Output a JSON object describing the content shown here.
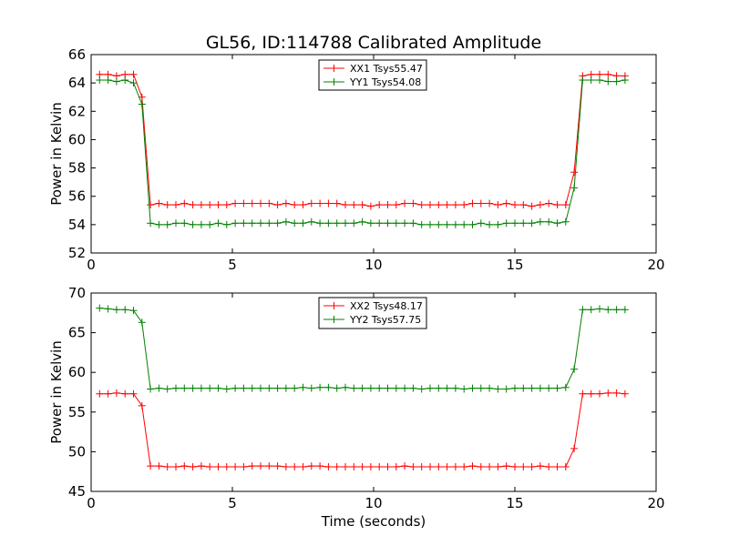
{
  "figure": {
    "title": "GL56, ID:114788 Calibrated Amplitude"
  },
  "chart_data": [
    {
      "type": "line",
      "title": "GL56, ID:114788 Calibrated Amplitude",
      "xlabel": "",
      "ylabel": "Power in Kelvin",
      "xlim": [
        0,
        20
      ],
      "ylim": [
        52,
        66
      ],
      "xticks": [
        0,
        5,
        10,
        15,
        20
      ],
      "yticks": [
        52,
        54,
        56,
        58,
        60,
        62,
        64,
        66
      ],
      "grid": false,
      "legend_position": "top-center",
      "x": [
        0.3,
        0.6,
        0.9,
        1.2,
        1.5,
        1.8,
        2.1,
        2.4,
        2.7,
        3.0,
        3.3,
        3.6,
        3.9,
        4.2,
        4.5,
        4.8,
        5.1,
        5.4,
        5.7,
        6.0,
        6.3,
        6.6,
        6.9,
        7.2,
        7.5,
        7.8,
        8.1,
        8.4,
        8.7,
        9.0,
        9.3,
        9.6,
        9.9,
        10.2,
        10.5,
        10.8,
        11.1,
        11.4,
        11.7,
        12.0,
        12.3,
        12.6,
        12.9,
        13.2,
        13.5,
        13.8,
        14.1,
        14.4,
        14.7,
        15.0,
        15.3,
        15.6,
        15.9,
        16.2,
        16.5,
        16.8,
        17.1,
        17.4,
        17.7,
        18.0,
        18.3,
        18.6,
        18.9
      ],
      "series": [
        {
          "name": "XX1 Tsys55.47",
          "color": "#ff0000",
          "values": [
            64.6,
            64.6,
            64.5,
            64.6,
            64.6,
            63.0,
            55.4,
            55.5,
            55.4,
            55.4,
            55.5,
            55.4,
            55.4,
            55.4,
            55.4,
            55.4,
            55.5,
            55.5,
            55.5,
            55.5,
            55.5,
            55.4,
            55.5,
            55.4,
            55.4,
            55.5,
            55.5,
            55.5,
            55.5,
            55.4,
            55.4,
            55.4,
            55.3,
            55.4,
            55.4,
            55.4,
            55.5,
            55.5,
            55.4,
            55.4,
            55.4,
            55.4,
            55.4,
            55.4,
            55.5,
            55.5,
            55.5,
            55.4,
            55.5,
            55.4,
            55.4,
            55.3,
            55.4,
            55.5,
            55.4,
            55.4,
            57.7,
            64.5,
            64.6,
            64.6,
            64.6,
            64.5,
            64.5
          ]
        },
        {
          "name": "YY1 Tsys54.08",
          "color": "#008000",
          "values": [
            64.2,
            64.2,
            64.1,
            64.2,
            64.0,
            62.5,
            54.1,
            54.0,
            54.0,
            54.1,
            54.1,
            54.0,
            54.0,
            54.0,
            54.1,
            54.0,
            54.1,
            54.1,
            54.1,
            54.1,
            54.1,
            54.1,
            54.2,
            54.1,
            54.1,
            54.2,
            54.1,
            54.1,
            54.1,
            54.1,
            54.1,
            54.2,
            54.1,
            54.1,
            54.1,
            54.1,
            54.1,
            54.1,
            54.0,
            54.0,
            54.0,
            54.0,
            54.0,
            54.0,
            54.0,
            54.1,
            54.0,
            54.0,
            54.1,
            54.1,
            54.1,
            54.1,
            54.2,
            54.2,
            54.1,
            54.2,
            56.6,
            64.2,
            64.2,
            64.2,
            64.1,
            64.1,
            64.2
          ]
        }
      ]
    },
    {
      "type": "line",
      "title": "",
      "xlabel": "Time (seconds)",
      "ylabel": "Power in Kelvin",
      "xlim": [
        0,
        20
      ],
      "ylim": [
        45,
        70
      ],
      "xticks": [
        0,
        5,
        10,
        15,
        20
      ],
      "yticks": [
        45,
        50,
        55,
        60,
        65,
        70
      ],
      "grid": false,
      "legend_position": "top-center",
      "x": [
        0.3,
        0.6,
        0.9,
        1.2,
        1.5,
        1.8,
        2.1,
        2.4,
        2.7,
        3.0,
        3.3,
        3.6,
        3.9,
        4.2,
        4.5,
        4.8,
        5.1,
        5.4,
        5.7,
        6.0,
        6.3,
        6.6,
        6.9,
        7.2,
        7.5,
        7.8,
        8.1,
        8.4,
        8.7,
        9.0,
        9.3,
        9.6,
        9.9,
        10.2,
        10.5,
        10.8,
        11.1,
        11.4,
        11.7,
        12.0,
        12.3,
        12.6,
        12.9,
        13.2,
        13.5,
        13.8,
        14.1,
        14.4,
        14.7,
        15.0,
        15.3,
        15.6,
        15.9,
        16.2,
        16.5,
        16.8,
        17.1,
        17.4,
        17.7,
        18.0,
        18.3,
        18.6,
        18.9
      ],
      "series": [
        {
          "name": "XX2 Tsys48.17",
          "color": "#ff0000",
          "values": [
            57.3,
            57.3,
            57.4,
            57.3,
            57.3,
            55.8,
            48.2,
            48.2,
            48.1,
            48.1,
            48.2,
            48.1,
            48.2,
            48.1,
            48.1,
            48.1,
            48.1,
            48.1,
            48.2,
            48.2,
            48.2,
            48.2,
            48.1,
            48.1,
            48.1,
            48.2,
            48.2,
            48.1,
            48.1,
            48.1,
            48.1,
            48.1,
            48.1,
            48.1,
            48.1,
            48.1,
            48.2,
            48.1,
            48.1,
            48.1,
            48.1,
            48.1,
            48.1,
            48.1,
            48.2,
            48.1,
            48.1,
            48.1,
            48.2,
            48.1,
            48.1,
            48.1,
            48.2,
            48.1,
            48.1,
            48.1,
            50.4,
            57.3,
            57.3,
            57.3,
            57.4,
            57.4,
            57.3
          ]
        },
        {
          "name": "YY2 Tsys57.75",
          "color": "#008000",
          "values": [
            68.1,
            68.0,
            67.9,
            67.9,
            67.8,
            66.3,
            57.9,
            58.0,
            57.9,
            58.0,
            58.0,
            58.0,
            58.0,
            58.0,
            58.0,
            57.9,
            58.0,
            58.0,
            58.0,
            58.0,
            58.0,
            58.0,
            58.0,
            58.0,
            58.1,
            58.0,
            58.1,
            58.1,
            58.0,
            58.1,
            58.0,
            58.0,
            58.0,
            58.0,
            58.0,
            58.0,
            58.0,
            58.0,
            57.9,
            58.0,
            58.0,
            58.0,
            58.0,
            57.9,
            58.0,
            58.0,
            58.0,
            57.9,
            57.9,
            58.0,
            58.0,
            58.0,
            58.0,
            58.0,
            58.0,
            58.1,
            60.4,
            67.9,
            67.9,
            68.0,
            67.9,
            67.9,
            67.9
          ]
        }
      ]
    }
  ]
}
